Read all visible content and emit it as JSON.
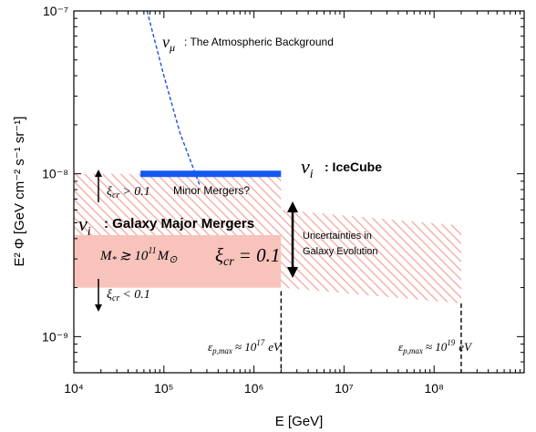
{
  "chart_data": {
    "type": "line",
    "xlabel": "E [GeV]",
    "ylabel": "E² Φ [GeV cm⁻² s⁻¹ sr⁻¹]",
    "xscale": "log",
    "yscale": "log",
    "xlim": [
      10000,
      1000000000
    ],
    "ylim": [
      6e-10,
      1e-07
    ],
    "x_ticks": [
      {
        "value": 10000,
        "label": "10⁴"
      },
      {
        "value": 100000,
        "label": "10⁵"
      },
      {
        "value": 1000000,
        "label": "10⁶"
      },
      {
        "value": 10000000,
        "label": "10⁷"
      },
      {
        "value": 100000000,
        "label": "10⁸"
      }
    ],
    "y_ticks": [
      {
        "value": 1e-09,
        "label": "10⁻⁹"
      },
      {
        "value": 1e-08,
        "label": "10⁻⁸"
      },
      {
        "value": 1e-07,
        "label": "10⁻⁷"
      }
    ],
    "series": [
      {
        "name": "ν_μ : The Atmospheric Background",
        "style": "dashed",
        "color": "#1f4fe0",
        "x": [
          65000,
          100000,
          150000,
          250000
        ],
        "y": [
          1e-07,
          4e-08,
          1.8e-08,
          8.5e-09
        ]
      },
      {
        "name": "ν_i : IceCube",
        "style": "thick-solid",
        "color": "#1558f0",
        "x": [
          55000,
          2000000
        ],
        "y": [
          1e-08,
          1e-08
        ]
      }
    ],
    "bands": [
      {
        "name": "major-mergers-band",
        "x": [
          10000,
          2000000
        ],
        "y_low": 2e-09,
        "y_high": 4.2e-09,
        "fill": "#f7c3bb"
      },
      {
        "name": "minor-mergers-hatch",
        "x": [
          10000,
          2000000
        ],
        "y_low": 4.2e-09,
        "y_high": 1e-08,
        "fill": "hatch"
      },
      {
        "name": "evolution-uncertainty-hatch",
        "x": [
          2000000,
          200000000
        ],
        "y_low_start": 2e-09,
        "y_low_end": 1.6e-09,
        "y_high_start": 6e-09,
        "y_high_end": 4.8e-09,
        "fill": "hatch"
      }
    ],
    "verticals": [
      {
        "x": 2000000,
        "y_top": 1.9e-09
      },
      {
        "x": 200000000,
        "y_top": 1.6e-09
      }
    ],
    "hatch_color": "#f2a8a0",
    "grid": false
  },
  "labels": {
    "atm_sym": "ν",
    "atm_sub": "μ",
    "atm_text": ": The Atmospheric Background",
    "ice_sym": "ν",
    "ice_sub": "i",
    "ice_text": ": IceCube",
    "xi_gt_sym": "ξ",
    "xi_gt_sub": "cr",
    "xi_gt_rel": "> 0.1",
    "minor": "Minor Mergers?",
    "gal_sym": "ν",
    "gal_sub": "i",
    "gal_text": ": Galaxy Major Mergers",
    "mass_M": "M",
    "mass_sub": "*",
    "mass_rel": "≳ 10",
    "mass_exp": "11",
    "mass_Msun": "M",
    "mass_sun": "⊙",
    "xi_eq_sym": "ξ",
    "xi_eq_sub": "cr",
    "xi_eq_rel": "= 0.1",
    "xi_lt_sym": "ξ",
    "xi_lt_sub": "cr",
    "xi_lt_rel": "< 0.1",
    "unc_line1": "Uncertainties in",
    "unc_line2": "Galaxy Evolution",
    "eps1_sym": "ε",
    "eps1_sub": "p,max",
    "eps1_rel": "≈ 10",
    "eps1_exp": "17",
    "eps1_unit": "eV",
    "eps2_sym": "ε",
    "eps2_sub": "p,max",
    "eps2_rel": "≈ 10",
    "eps2_exp": "19",
    "eps2_unit": "eV"
  }
}
